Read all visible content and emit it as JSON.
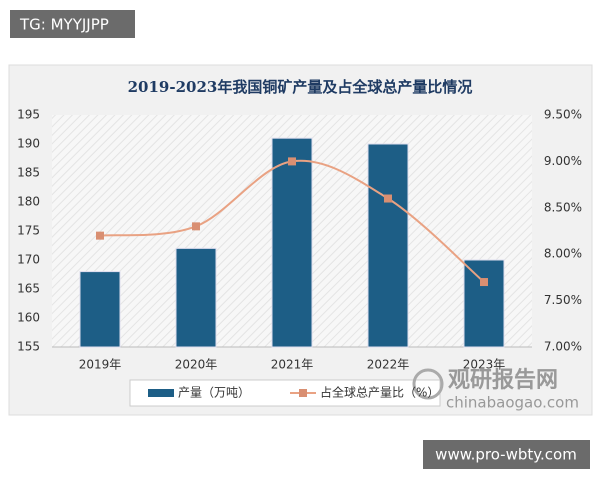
{
  "overlay": {
    "top_left": "TG: MYYJJPP",
    "bottom_right": "www.pro-wbty.com"
  },
  "logo": {
    "name": "观研报告网",
    "url": "chinabaogao.com"
  },
  "chart_data": {
    "type": "bar",
    "title": "2019-2023年我国铜矿产量及占全球总产量比情况",
    "categories": [
      "2019年",
      "2020年",
      "2021年",
      "2022年",
      "2023年"
    ],
    "series": [
      {
        "name": "产量（万吨）",
        "type": "bar",
        "color": "#1d5e86",
        "values": [
          168,
          172,
          191,
          190,
          170
        ]
      },
      {
        "name": "占全球总产量比（%）",
        "type": "line",
        "axis": "y2",
        "color": "#e9a283",
        "values": [
          8.2,
          8.3,
          9.0,
          8.6,
          7.7
        ]
      }
    ],
    "ylim": [
      155,
      195
    ],
    "yticks": [
      155,
      160,
      165,
      170,
      175,
      180,
      185,
      190,
      195
    ],
    "y2lim": [
      7.0,
      9.5
    ],
    "y2ticks": [
      {
        "value": 7.0,
        "label": "7.00%"
      },
      {
        "value": 7.5,
        "label": "7.50%"
      },
      {
        "value": 8.0,
        "label": "8.00%"
      },
      {
        "value": 8.5,
        "label": "8.50%"
      },
      {
        "value": 9.0,
        "label": "9.00%"
      },
      {
        "value": 9.5,
        "label": "9.50%"
      }
    ],
    "grid": false,
    "legend": "bottom"
  }
}
